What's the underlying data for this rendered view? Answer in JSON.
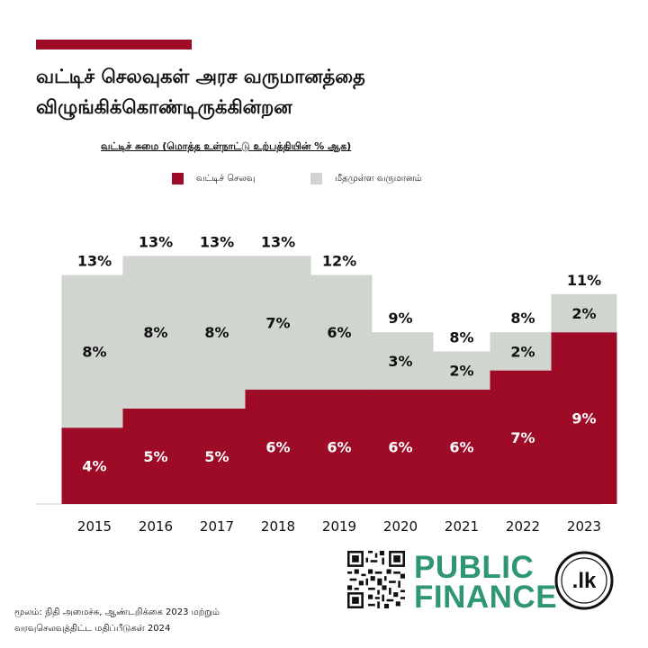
{
  "title": "வட்டிச் செலவுகள் அரச வருமானத்தை விழுங்கிக்கொண்டிருக்கின்றன",
  "subtitle": "வட்டிச் சுமை (மொத்த உள்நாட்டு உற்பத்தியின் % ஆக)",
  "legend": {
    "interest": "வட்டிச் செலவு",
    "remaining": "மீதமுள்ள வருமானம்"
  },
  "colors": {
    "interest": "#9e0b27",
    "remaining": "#d0d5cf",
    "brand": "#2e9670",
    "accent": "#9e0b27"
  },
  "chart_data": {
    "type": "bar",
    "stacked": true,
    "categories": [
      "2015",
      "2016",
      "2017",
      "2018",
      "2019",
      "2020",
      "2021",
      "2022",
      "2023"
    ],
    "series": [
      {
        "name": "வட்டிச் செலவு",
        "values": [
          4,
          5,
          5,
          6,
          6,
          6,
          6,
          7,
          9
        ],
        "labels": [
          "4%",
          "5%",
          "5%",
          "6%",
          "6%",
          "6%",
          "6%",
          "7%",
          "9%"
        ]
      },
      {
        "name": "மீதமுள்ள வருமானம்",
        "values": [
          8,
          8,
          8,
          7,
          6,
          3,
          2,
          2,
          2
        ],
        "labels": [
          "8%",
          "8%",
          "8%",
          "7%",
          "6%",
          "3%",
          "2%",
          "2%",
          "2%"
        ]
      }
    ],
    "totals": [
      "13%",
      "13%",
      "13%",
      "13%",
      "12%",
      "9%",
      "8%",
      "8%",
      "11%"
    ],
    "legend_position": "top",
    "grid": false
  },
  "source": {
    "line1": "மூலம்: நிதி அமைச்சு, ஆண்டறிக்கை 2023 மற்றும்",
    "line2": "வரவுசெலவுத்திட்ட மதிப்பீடுகள் 2024"
  },
  "brand": {
    "line1": "PUBLIC",
    "line2": "FINANCE",
    "badge": ".lk"
  },
  "icons": {
    "qr": "qr-code-icon"
  }
}
